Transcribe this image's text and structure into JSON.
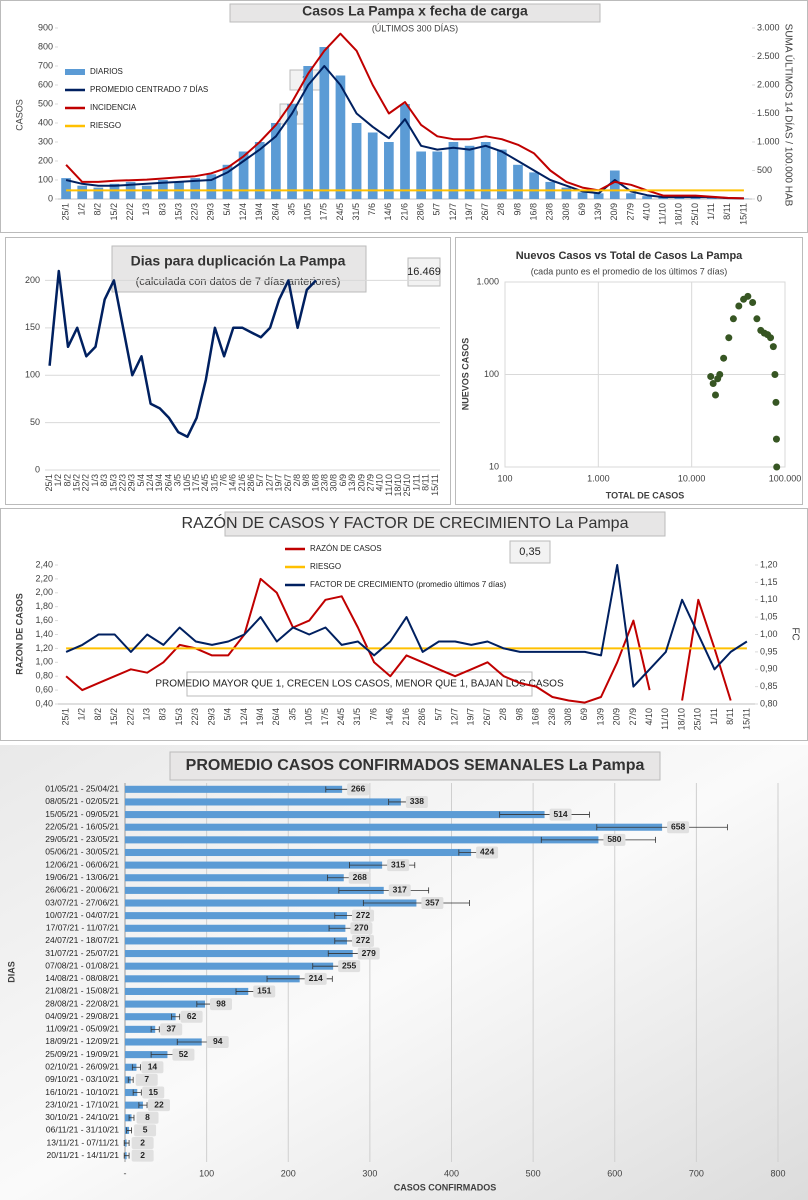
{
  "chart_data": [
    {
      "type": "combo",
      "title": "Casos La Pampa x fecha de carga",
      "subtitle": "(ÚLTIMOS 300 DÍAS)",
      "ylabel": "CASOS",
      "y2label": "SUMA ÚLTIMOS 14 DÍAS / 100.000 HAB",
      "annotations": [
        "2",
        "9"
      ],
      "categories": [
        "25/1",
        "1/2",
        "8/2",
        "15/2",
        "22/2",
        "1/3",
        "8/3",
        "15/3",
        "22/3",
        "29/3",
        "5/4",
        "12/4",
        "19/4",
        "26/4",
        "3/5",
        "10/5",
        "17/5",
        "24/5",
        "31/5",
        "7/6",
        "14/6",
        "21/6",
        "28/6",
        "5/7",
        "12/7",
        "19/7",
        "26/7",
        "2/8",
        "9/8",
        "16/8",
        "23/8",
        "30/8",
        "6/9",
        "13/9",
        "20/9",
        "27/9",
        "4/10",
        "11/10",
        "18/10",
        "25/10",
        "1/11",
        "8/11",
        "15/11"
      ],
      "ylim": [
        0,
        900
      ],
      "yticks": [
        0,
        100,
        200,
        300,
        400,
        500,
        600,
        700,
        800,
        900
      ],
      "y2lim": [
        0,
        3000
      ],
      "y2ticks": [
        0,
        500,
        {
          "value": 1000,
          "label": "1.000"
        },
        {
          "value": 1500,
          "label": "1.500"
        },
        {
          "value": 2000,
          "label": "2.000"
        },
        {
          "value": 2500,
          "label": "2.500"
        },
        {
          "value": 3000,
          "label": "3.000"
        }
      ],
      "grid": false,
      "legend": "upper left",
      "series": [
        {
          "name": "DIARIOS",
          "type": "bar",
          "color": "#5b9bd5",
          "values": [
            110,
            70,
            60,
            80,
            90,
            70,
            100,
            90,
            110,
            130,
            180,
            250,
            300,
            400,
            500,
            700,
            800,
            650,
            400,
            350,
            300,
            500,
            250,
            250,
            300,
            280,
            300,
            260,
            180,
            140,
            90,
            60,
            35,
            30,
            150,
            30,
            15,
            8,
            10,
            12,
            8,
            4,
            2
          ]
        },
        {
          "name": "PROMEDIO CENTRADO 7 DÍAS",
          "color": "#002060",
          "values": [
            100,
            80,
            70,
            70,
            75,
            80,
            85,
            90,
            95,
            100,
            140,
            200,
            260,
            330,
            450,
            600,
            700,
            600,
            450,
            380,
            320,
            420,
            280,
            260,
            270,
            260,
            280,
            250,
            200,
            150,
            100,
            70,
            40,
            30,
            100,
            40,
            20,
            10,
            10,
            10,
            10,
            5,
            3
          ]
        },
        {
          "name": "INCIDENCIA",
          "color": "#c00000",
          "axis": "y2",
          "values": [
            600,
            300,
            300,
            320,
            330,
            340,
            360,
            380,
            400,
            450,
            550,
            750,
            1000,
            1300,
            1700,
            2200,
            2600,
            2900,
            2600,
            2000,
            1500,
            1700,
            1300,
            1100,
            1050,
            1050,
            1100,
            1050,
            950,
            800,
            500,
            300,
            200,
            150,
            300,
            250,
            150,
            60,
            60,
            60,
            40,
            20,
            10
          ]
        },
        {
          "name": "RIESGO",
          "color": "#ffc000",
          "axis": "y2",
          "values": [
            150,
            150,
            150,
            150,
            150,
            150,
            150,
            150,
            150,
            150,
            150,
            150,
            150,
            150,
            150,
            150,
            150,
            150,
            150,
            150,
            150,
            150,
            150,
            150,
            150,
            150,
            150,
            150,
            150,
            150,
            150,
            150,
            150,
            150,
            150,
            150,
            150,
            150,
            150,
            150,
            150,
            150,
            150
          ]
        }
      ]
    },
    {
      "type": "line",
      "title": "Dias para duplicación La Pampa",
      "subtitle": "(calculada con datos de 7 días anteriores)",
      "annotations": [
        "16.469"
      ],
      "categories": [
        "25/1",
        "1/2",
        "8/2",
        "15/2",
        "22/2",
        "1/3",
        "8/3",
        "15/3",
        "22/3",
        "29/3",
        "5/4",
        "12/4",
        "19/4",
        "26/4",
        "3/5",
        "10/5",
        "17/5",
        "24/5",
        "31/5",
        "7/6",
        "14/6",
        "21/6",
        "28/6",
        "5/7",
        "12/7",
        "19/7",
        "26/7",
        "2/8",
        "9/8",
        "16/8",
        "23/8",
        "30/8",
        "6/9",
        "13/9",
        "20/9",
        "27/9",
        "4/10",
        "11/10",
        "18/10",
        "25/10",
        "1/11",
        "8/11",
        "15/11"
      ],
      "ylim": [
        0,
        230
      ],
      "yticks": [
        0,
        50,
        100,
        150,
        200
      ],
      "grid": true,
      "series": [
        {
          "color": "#002060",
          "values": [
            110,
            210,
            130,
            150,
            120,
            130,
            180,
            200,
            150,
            100,
            120,
            70,
            65,
            55,
            40,
            35,
            55,
            95,
            150,
            120,
            150,
            150,
            145,
            140,
            150,
            180,
            200,
            150,
            190,
            200,
            null,
            null,
            null,
            null,
            null,
            null,
            null,
            null,
            null,
            null,
            null,
            null,
            null
          ]
        }
      ]
    },
    {
      "type": "scatter",
      "title": "Nuevos Casos vs Total de Casos La Pampa",
      "subtitle": "(cada punto es el promedio de los últimos 7 días)",
      "xlabel": "TOTAL DE CASOS",
      "ylabel": "NUEVOS CASOS",
      "log_x": true,
      "log_y": true,
      "grid": true,
      "color": "#375623",
      "xlim": [
        100,
        100000
      ],
      "xticks": [
        100,
        {
          "value": 1000,
          "label": "1.000"
        },
        {
          "value": 10000,
          "label": "10.000"
        },
        {
          "value": 100000,
          "label": "100.000"
        }
      ],
      "ylim": [
        10,
        1000
      ],
      "yticks": [
        10,
        100,
        {
          "value": 1000,
          "label": "1.000"
        }
      ],
      "x": [
        16000,
        17000,
        18000,
        19000,
        20000,
        22000,
        25000,
        28000,
        32000,
        36000,
        40000,
        45000,
        50000,
        55000,
        60000,
        65000,
        70000,
        75000,
        78000,
        80000,
        81000,
        81500
      ],
      "y": [
        95,
        80,
        60,
        90,
        100,
        150,
        250,
        400,
        550,
        650,
        700,
        600,
        400,
        300,
        280,
        270,
        250,
        200,
        100,
        50,
        20,
        10
      ]
    },
    {
      "type": "line",
      "title": "RAZÓN DE CASOS Y FACTOR DE CRECIMIENTO La Pampa",
      "ylabel": "RAZON DE CASOS",
      "y2label": "FC",
      "annotations": [
        "0,35",
        "PROMEDIO MAYOR QUE 1, CRECEN LOS CASOS, MENOR QUE 1, BAJAN LOS CASOS"
      ],
      "legend": "upper center",
      "grid": false,
      "categories": [
        "25/1",
        "1/2",
        "8/2",
        "15/2",
        "22/2",
        "1/3",
        "8/3",
        "15/3",
        "22/3",
        "29/3",
        "5/4",
        "12/4",
        "19/4",
        "26/4",
        "3/5",
        "10/5",
        "17/5",
        "24/5",
        "31/5",
        "7/6",
        "14/6",
        "21/6",
        "28/6",
        "5/7",
        "12/7",
        "19/7",
        "26/7",
        "2/8",
        "9/8",
        "16/8",
        "23/8",
        "30/8",
        "6/9",
        "13/9",
        "20/9",
        "27/9",
        "4/10",
        "11/10",
        "18/10",
        "25/10",
        "1/11",
        "8/11",
        "15/11"
      ],
      "ylim": [
        0.4,
        2.4
      ],
      "yticks": [
        {
          "value": 0.4,
          "label": "0,40"
        },
        {
          "value": 0.6,
          "label": "0,60"
        },
        {
          "value": 0.8,
          "label": "0,80"
        },
        {
          "value": 1,
          "label": "1,00"
        },
        {
          "value": 1.2,
          "label": "1,20"
        },
        {
          "value": 1.4,
          "label": "1,40"
        },
        {
          "value": 1.6,
          "label": "1,60"
        },
        {
          "value": 1.8,
          "label": "1,80"
        },
        {
          "value": 2,
          "label": "2,00"
        },
        {
          "value": 2.2,
          "label": "2,20"
        },
        {
          "value": 2.4,
          "label": "2,40"
        }
      ],
      "y2lim": [
        0.8,
        1.2
      ],
      "y2ticks": [
        {
          "value": 0.8,
          "label": "0,80"
        },
        {
          "value": 0.85,
          "label": "0,85"
        },
        {
          "value": 0.9,
          "label": "0,90"
        },
        {
          "value": 0.95,
          "label": "0,95"
        },
        {
          "value": 1,
          "label": "1,00"
        },
        {
          "value": 1.05,
          "label": "1,05"
        },
        {
          "value": 1.1,
          "label": "1,10"
        },
        {
          "value": 1.15,
          "label": "1,15"
        },
        {
          "value": 1.2,
          "label": "1,20"
        }
      ],
      "series": [
        {
          "name": "RAZÓN DE CASOS",
          "color": "#c00000",
          "values": [
            0.8,
            0.6,
            0.7,
            0.8,
            0.9,
            0.85,
            1.0,
            1.25,
            1.2,
            1.1,
            1.1,
            1.4,
            2.2,
            2.0,
            1.5,
            1.6,
            1.9,
            1.95,
            1.5,
            1.0,
            0.8,
            1.1,
            1.0,
            0.9,
            0.8,
            0.9,
            1.0,
            0.8,
            0.7,
            0.65,
            0.5,
            0.45,
            0.42,
            0.5,
            1.0,
            1.6,
            0.6,
            null,
            0.45,
            1.9,
            1.2,
            0.45,
            null
          ]
        },
        {
          "name": "RIESGO",
          "color": "#ffc000",
          "values": [
            1.2,
            1.2,
            1.2,
            1.2,
            1.2,
            1.2,
            1.2,
            1.2,
            1.2,
            1.2,
            1.2,
            1.2,
            1.2,
            1.2,
            1.2,
            1.2,
            1.2,
            1.2,
            1.2,
            1.2,
            1.2,
            1.2,
            1.2,
            1.2,
            1.2,
            1.2,
            1.2,
            1.2,
            1.2,
            1.2,
            1.2,
            1.2,
            1.2,
            1.2,
            1.2,
            1.2,
            1.2,
            1.2,
            1.2,
            1.2,
            1.2,
            1.2,
            1.2
          ]
        },
        {
          "name": "FACTOR DE CRECIMIENTO (promedio últimos 7 días)",
          "color": "#002060",
          "axis": "y2",
          "values": [
            0.95,
            0.97,
            1.0,
            1.0,
            0.95,
            1.0,
            0.97,
            1.02,
            0.98,
            0.97,
            0.98,
            1.0,
            1.05,
            0.98,
            1.02,
            1.0,
            1.02,
            0.97,
            0.98,
            0.94,
            0.98,
            1.05,
            0.95,
            0.98,
            0.98,
            0.97,
            0.98,
            0.96,
            0.95,
            0.95,
            0.95,
            0.95,
            0.95,
            0.94,
            1.2,
            0.85,
            0.9,
            0.95,
            1.1,
            1.0,
            0.9,
            0.95,
            0.98
          ]
        }
      ]
    },
    {
      "type": "hbar",
      "title": "PROMEDIO CASOS CONFIRMADOS SEMANALES La Pampa",
      "xlabel": "CASOS CONFIRMADOS",
      "ylabel": "DIAS",
      "color": "#5b9bd5",
      "grid": true,
      "xlim": [
        0,
        800
      ],
      "xticks": [
        {
          "value": 0,
          "label": "-"
        },
        100,
        200,
        300,
        400,
        500,
        600,
        700,
        800
      ],
      "categories": [
        "01/05/21 - 25/04/21",
        "08/05/21 - 02/05/21",
        "15/05/21 - 09/05/21",
        "22/05/21 - 16/05/21",
        "29/05/21 - 23/05/21",
        "05/06/21 - 30/05/21",
        "12/06/21 - 06/06/21",
        "19/06/21 - 13/06/21",
        "26/06/21 - 20/06/21",
        "03/07/21 - 27/06/21",
        "10/07/21 - 04/07/21",
        "17/07/21 - 11/07/21",
        "24/07/21 - 18/07/21",
        "31/07/21 - 25/07/21",
        "07/08/21 - 01/08/21",
        "14/08/21 - 08/08/21",
        "21/08/21 - 15/08/21",
        "28/08/21 - 22/08/21",
        "04/09/21 - 29/08/21",
        "11/09/21 - 05/09/21",
        "18/09/21 - 12/09/21",
        "25/09/21 - 19/09/21",
        "02/10/21 - 26/09/21",
        "09/10/21 - 03/10/21",
        "16/10/21 - 10/10/21",
        "23/10/21 - 17/10/21",
        "30/10/21 - 24/10/21",
        "06/11/21 - 31/10/21",
        "13/11/21 - 07/11/21",
        "20/11/21 - 14/11/21"
      ],
      "values": [
        266,
        338,
        514,
        658,
        580,
        424,
        315,
        268,
        317,
        357,
        272,
        270,
        272,
        279,
        255,
        214,
        151,
        98,
        62,
        37,
        94,
        52,
        14,
        7,
        15,
        22,
        8,
        5,
        2,
        2
      ],
      "errors": [
        20,
        15,
        55,
        80,
        70,
        15,
        40,
        20,
        55,
        65,
        15,
        20,
        15,
        30,
        25,
        40,
        15,
        10,
        5,
        5,
        30,
        20,
        5,
        3,
        5,
        5,
        3,
        3,
        3,
        3
      ]
    }
  ]
}
